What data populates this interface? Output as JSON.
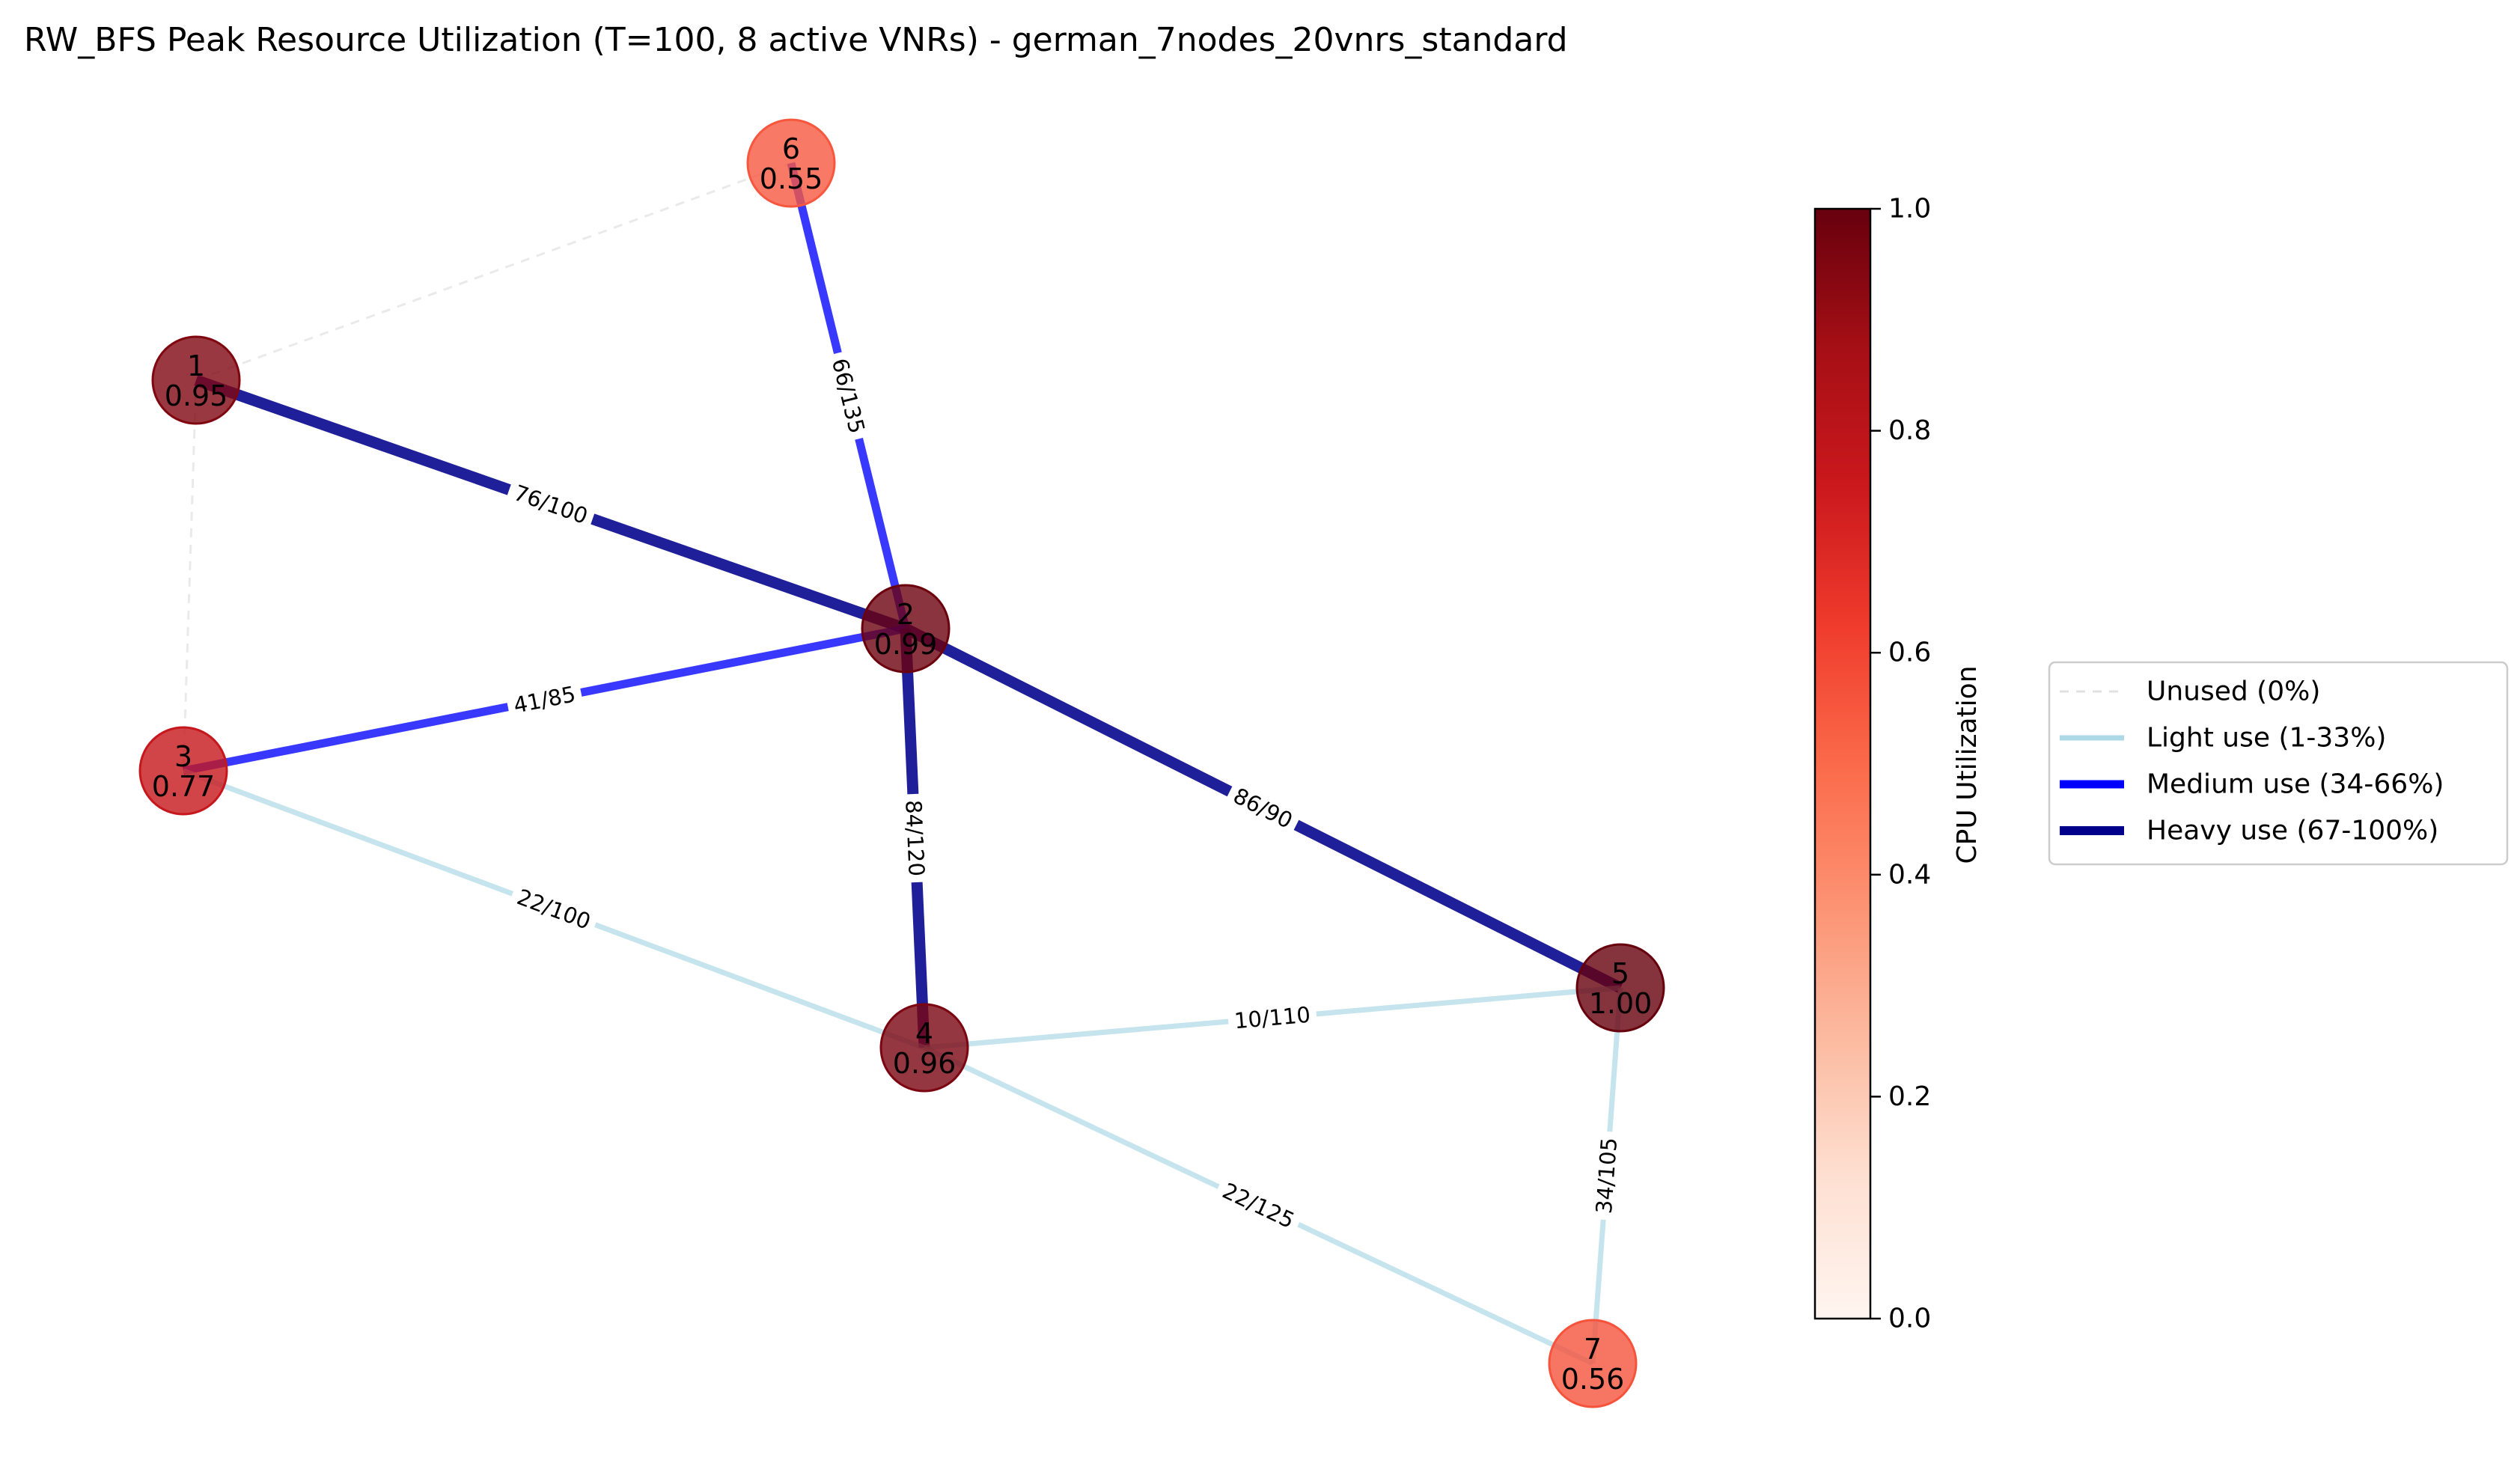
{
  "title": "RW_BFS Peak Resource Utilization (T=100, 8 active VNRs) - german_7nodes_20vnrs_standard",
  "nodes": [
    {
      "id": "1",
      "value": "0.95",
      "util": 0.95
    },
    {
      "id": "2",
      "value": "0.99",
      "util": 0.99
    },
    {
      "id": "3",
      "value": "0.77",
      "util": 0.77
    },
    {
      "id": "4",
      "value": "0.96",
      "util": 0.96
    },
    {
      "id": "5",
      "value": "1.00",
      "util": 1.0
    },
    {
      "id": "6",
      "value": "0.55",
      "util": 0.55
    },
    {
      "id": "7",
      "value": "0.56",
      "util": 0.56
    }
  ],
  "edges": [
    {
      "from": "1",
      "to": "6",
      "label": "",
      "level": "unused"
    },
    {
      "from": "1",
      "to": "3",
      "label": "",
      "level": "unused"
    },
    {
      "from": "6",
      "to": "2",
      "label": "66/135",
      "level": "medium"
    },
    {
      "from": "1",
      "to": "2",
      "label": "76/100",
      "level": "heavy"
    },
    {
      "from": "3",
      "to": "2",
      "label": "41/85",
      "level": "medium"
    },
    {
      "from": "2",
      "to": "4",
      "label": "84/120",
      "level": "heavy"
    },
    {
      "from": "2",
      "to": "5",
      "label": "86/90",
      "level": "heavy"
    },
    {
      "from": "3",
      "to": "4",
      "label": "22/100",
      "level": "light"
    },
    {
      "from": "4",
      "to": "5",
      "label": "10/110",
      "level": "light"
    },
    {
      "from": "4",
      "to": "7",
      "label": "22/125",
      "level": "light"
    },
    {
      "from": "5",
      "to": "7",
      "label": "34/105",
      "level": "light"
    }
  ],
  "colorbar": {
    "label": "CPU Utilization",
    "ticks": [
      "0.0",
      "0.2",
      "0.4",
      "0.6",
      "0.8",
      "1.0"
    ],
    "colormap": "Reds"
  },
  "legend": [
    {
      "label": "Unused (0%)",
      "level": "unused"
    },
    {
      "label": "Light use (1-33%)",
      "level": "light"
    },
    {
      "label": "Medium use (34-66%)",
      "level": "medium"
    },
    {
      "label": "Heavy use (67-100%)",
      "level": "heavy"
    }
  ],
  "colors": {
    "unused": "#d9d9d9",
    "light": "#add8e6",
    "medium": "#0000ff",
    "heavy": "#00008b"
  }
}
